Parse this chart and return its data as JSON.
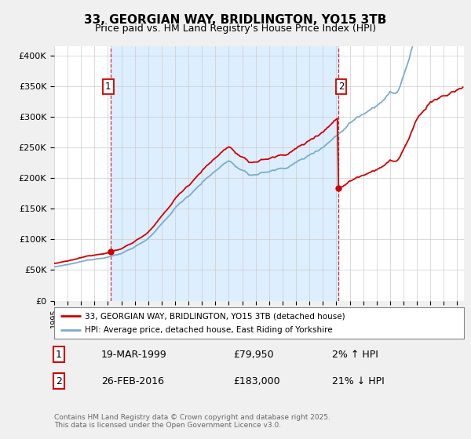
{
  "title": "33, GEORGIAN WAY, BRIDLINGTON, YO15 3TB",
  "subtitle": "Price paid vs. HM Land Registry's House Price Index (HPI)",
  "ylabel_ticks": [
    "£0",
    "£50K",
    "£100K",
    "£150K",
    "£200K",
    "£250K",
    "£300K",
    "£350K",
    "£400K"
  ],
  "ytick_values": [
    0,
    50000,
    100000,
    150000,
    200000,
    250000,
    300000,
    350000,
    400000
  ],
  "ylim": [
    0,
    415000
  ],
  "xlim_start": 1995.0,
  "xlim_end": 2025.5,
  "red_color": "#cc0000",
  "blue_color": "#7aadcc",
  "shade_color": "#ddeeff",
  "marker1_x": 1999.22,
  "marker1_y": 79950,
  "marker2_x": 2016.15,
  "marker2_y": 183000,
  "vline1_x": 1999.22,
  "vline2_x": 2016.15,
  "legend_line1": "33, GEORGIAN WAY, BRIDLINGTON, YO15 3TB (detached house)",
  "legend_line2": "HPI: Average price, detached house, East Riding of Yorkshire",
  "table_row1_num": "1",
  "table_row1_date": "19-MAR-1999",
  "table_row1_price": "£79,950",
  "table_row1_hpi": "2% ↑ HPI",
  "table_row2_num": "2",
  "table_row2_date": "26-FEB-2016",
  "table_row2_price": "£183,000",
  "table_row2_hpi": "21% ↓ HPI",
  "footer": "Contains HM Land Registry data © Crown copyright and database right 2025.\nThis data is licensed under the Open Government Licence v3.0.",
  "background_color": "#f0f0f0",
  "plot_bg_color": "#ffffff"
}
